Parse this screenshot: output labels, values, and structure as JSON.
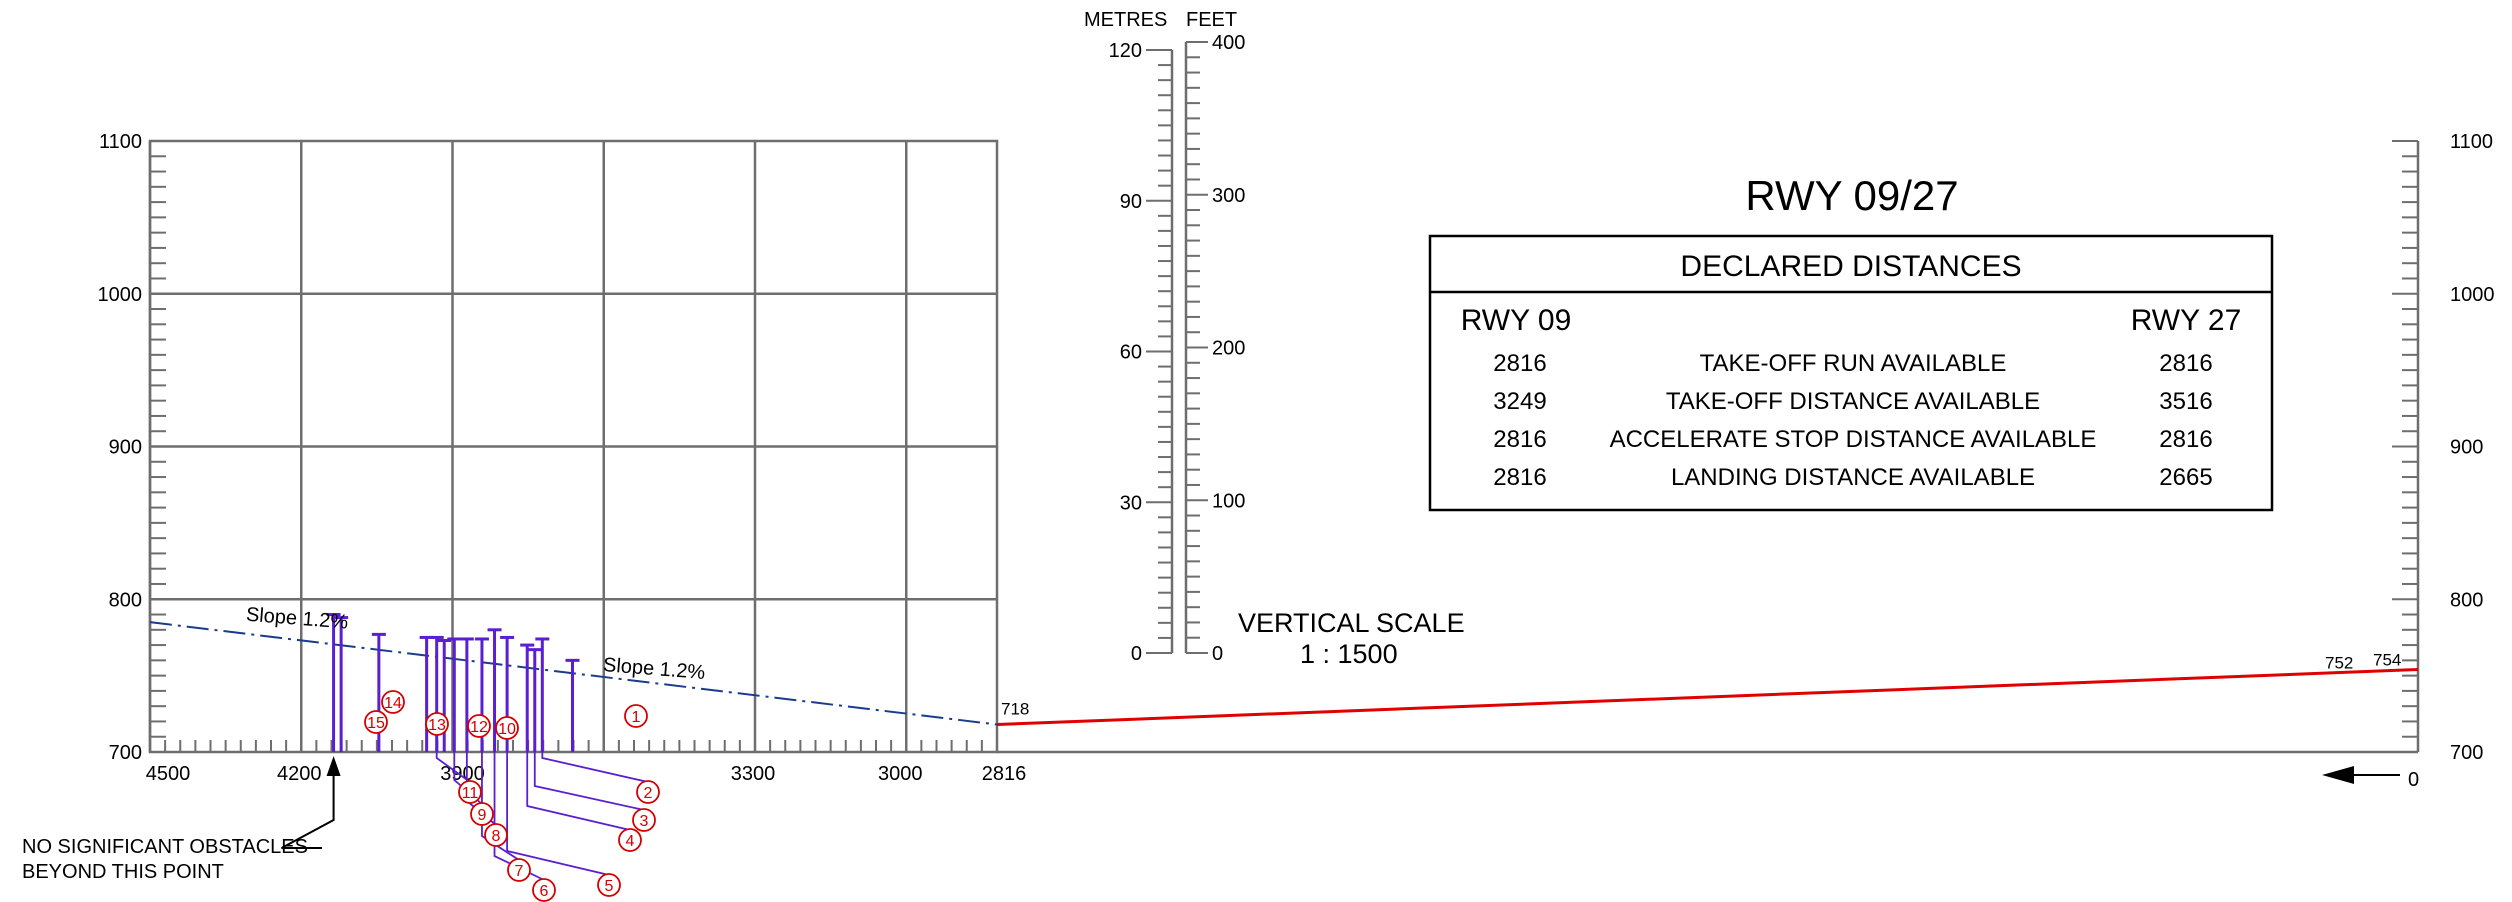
{
  "runway_title": "RWY 09/27",
  "declared_distances": {
    "title": "DECLARED DISTANCES",
    "col_left": "RWY 09",
    "col_right": "RWY 27",
    "rows": [
      {
        "label": "TAKE-OFF RUN AVAILABLE",
        "rwy09": "2816",
        "rwy27": "2816"
      },
      {
        "label": "TAKE-OFF DISTANCE AVAILABLE",
        "rwy09": "3249",
        "rwy27": "3516"
      },
      {
        "label": "ACCELERATE STOP DISTANCE AVAILABLE",
        "rwy09": "2816",
        "rwy27": "2816"
      },
      {
        "label": "LANDING DISTANCE AVAILABLE",
        "rwy09": "2816",
        "rwy27": "2665"
      }
    ]
  },
  "vertical_scale": {
    "units_metres": "METRES",
    "units_feet": "FEET",
    "metres_labels": [
      "0",
      "30",
      "60",
      "90",
      "120"
    ],
    "feet_labels": [
      "0",
      "100",
      "200",
      "300",
      "400"
    ],
    "title": "VERTICAL SCALE",
    "ratio": "1 : 1500"
  },
  "chart_data": {
    "type": "line",
    "x_direction": "decreasing-to-right",
    "grid": true,
    "y_ticks": [
      700,
      800,
      900,
      1000,
      1100
    ],
    "y_tick_labels": [
      "700",
      "800",
      "900",
      "1000",
      "1100"
    ],
    "x_tick_labels": [
      "4500",
      "4200",
      "3900",
      "3300",
      "3000",
      "2816"
    ],
    "x_tick_values": [
      4500,
      4200,
      3900,
      3300,
      3000,
      2816
    ],
    "ylim": [
      700,
      1100
    ],
    "xlim": [
      4500,
      0
    ],
    "x_origin_label": "0",
    "series": [
      {
        "name": "Slope 1.2%",
        "style": "dash-dot",
        "color": "#1a3c8c",
        "points": [
          [
            4500,
            785
          ],
          [
            2816,
            718
          ]
        ]
      },
      {
        "style": "solid",
        "color": "#e00000",
        "points": [
          [
            2816,
            718
          ],
          [
            0,
            754
          ]
        ]
      }
    ],
    "slope_labels": [
      {
        "text": "Slope 1.2%",
        "x": 4310,
        "y": 786
      },
      {
        "text": "Slope 1.2%",
        "x": 3600,
        "y": 753
      }
    ],
    "elevation_labels": [
      {
        "text": "718",
        "x": 2816,
        "y": 718
      },
      {
        "text": "752",
        "x": 170,
        "y": 752
      },
      {
        "text": "754",
        "x": 55,
        "y": 754
      }
    ],
    "obstacles": [
      {
        "id": "1",
        "x": 3660,
        "top": 760
      },
      {
        "id": "2",
        "x": 3720,
        "top": 774
      },
      {
        "id": "3",
        "x": 3735,
        "top": 767
      },
      {
        "id": "4",
        "x": 3750,
        "top": 770
      },
      {
        "id": "5",
        "x": 3790,
        "top": 775
      },
      {
        "id": "6",
        "x": 3815,
        "top": 780
      },
      {
        "id": "7",
        "x": 3840,
        "top": 774
      },
      {
        "id": "8",
        "x": 3870,
        "top": 774
      },
      {
        "id": "9",
        "x": 3895,
        "top": 774
      },
      {
        "id": "10",
        "x": 3915,
        "top": 773
      },
      {
        "id": "11",
        "x": 3930,
        "top": 775
      },
      {
        "id": "12",
        "x": 3950,
        "top": 775
      },
      {
        "id": "13",
        "x": 4045,
        "top": 777
      },
      {
        "id": "14",
        "x": 4120,
        "top": 788
      },
      {
        "id": "15",
        "x": 4135,
        "top": 790
      }
    ],
    "annotation": {
      "line1": "NO SIGNIFICANT OBSTACLES",
      "line2": "BEYOND THIS POINT",
      "x": 4135
    }
  }
}
